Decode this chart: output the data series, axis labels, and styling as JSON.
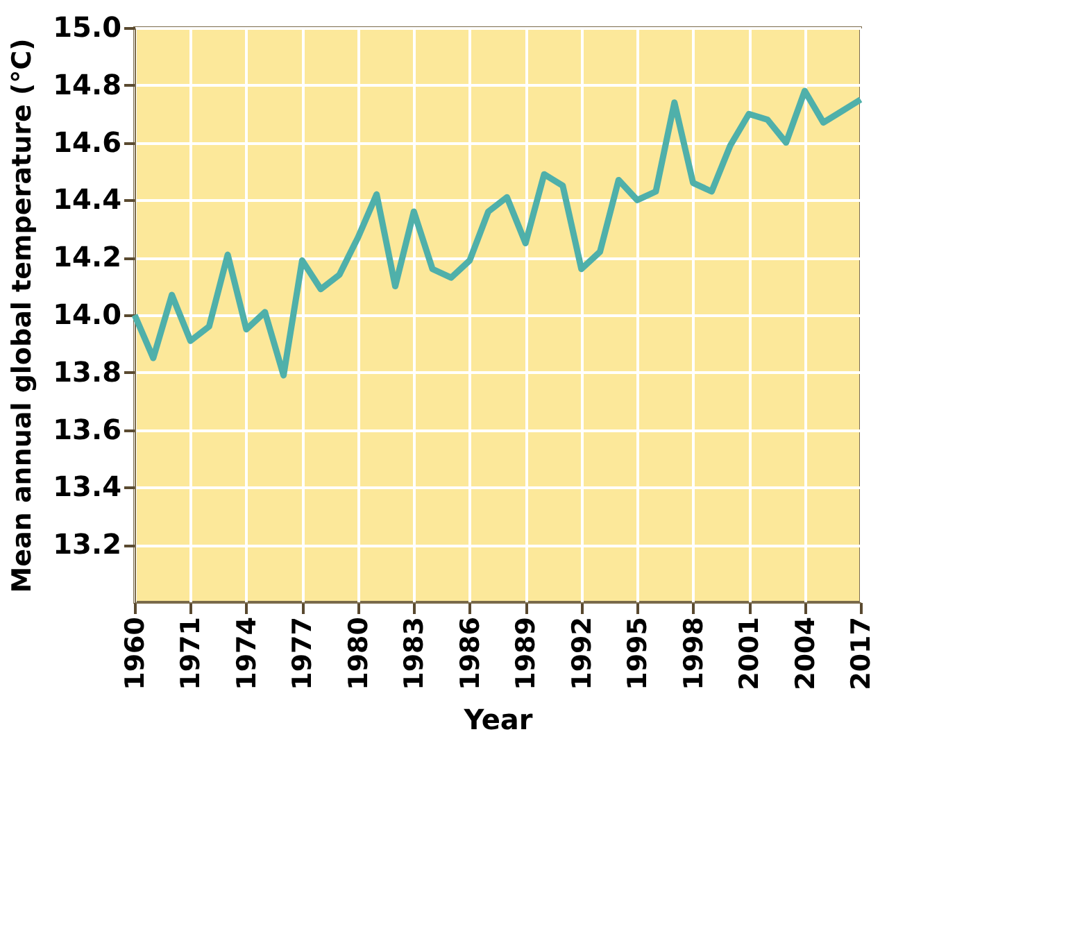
{
  "chart_data": {
    "type": "line",
    "xlabel": "Year",
    "ylabel": "Mean annual global temperature (°C)",
    "categories": [
      "1960",
      null,
      null,
      "1971",
      null,
      null,
      "1974",
      null,
      null,
      "1977",
      null,
      null,
      "1980",
      null,
      null,
      "1983",
      null,
      null,
      "1986",
      null,
      null,
      "1989",
      null,
      null,
      "1992",
      null,
      null,
      "1995",
      null,
      null,
      "1998",
      null,
      null,
      "2001",
      null,
      null,
      "2004",
      null,
      null,
      "2017"
    ],
    "series": [
      {
        "color": "#4fb0aa",
        "values": [
          14.0,
          13.85,
          14.07,
          13.91,
          13.96,
          14.21,
          13.95,
          14.01,
          13.79,
          14.19,
          14.09,
          14.14,
          14.27,
          14.42,
          14.1,
          14.36,
          14.16,
          14.13,
          14.19,
          14.36,
          14.41,
          14.25,
          14.49,
          14.45,
          14.16,
          14.22,
          14.47,
          14.4,
          14.43,
          14.74,
          14.46,
          14.43,
          14.59,
          14.7,
          14.68,
          14.6,
          14.78,
          14.67,
          14.71,
          14.75
        ]
      }
    ],
    "ylim": [
      13.0,
      15.0
    ],
    "yticks": [
      13.2,
      13.4,
      13.6,
      13.8,
      {
        "value": 14,
        "label": "14.0"
      },
      14.2,
      14.4,
      14.6,
      14.8,
      {
        "value": 15,
        "label": "15.0"
      }
    ],
    "grid": true,
    "marker": "none",
    "line_style": "solid"
  }
}
